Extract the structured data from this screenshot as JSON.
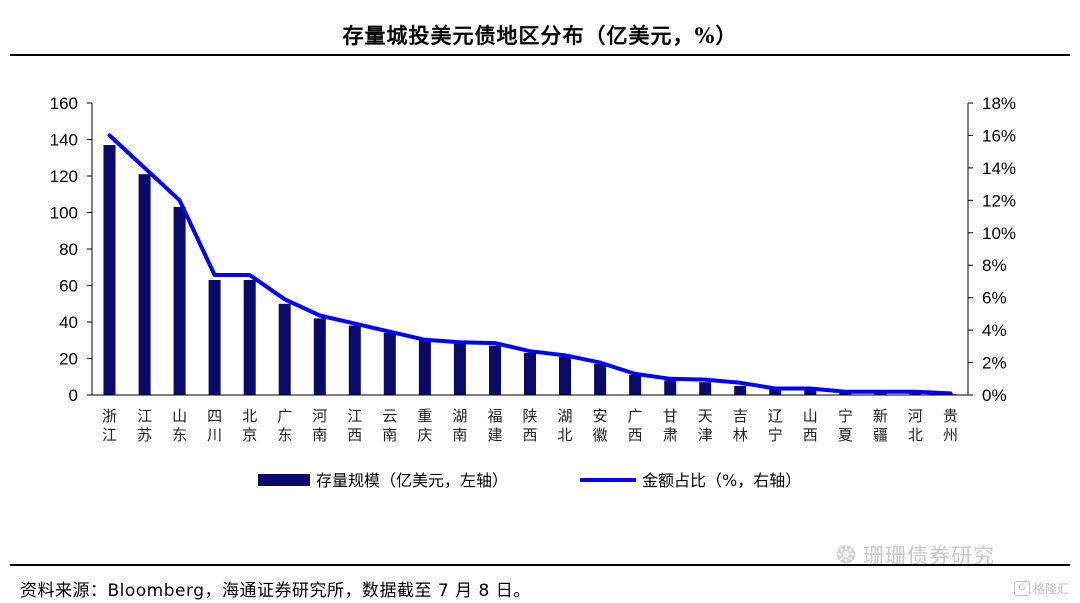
{
  "title": "存量城投美元债地区分布（亿美元，%）",
  "source": "资料来源：Bloomberg，海通证券研究所，数据截至 7 月 8 日。",
  "watermark": {
    "text": "珊珊债券研究",
    "icon": "wechat-icon"
  },
  "corner_badge": {
    "text": "格隆汇",
    "icon": "gelonghui-logo-icon"
  },
  "colors": {
    "bar": "#0a0a6b",
    "line": "#0000ff",
    "axis": "#000000"
  },
  "chart_data": {
    "type": "bar+line",
    "categories": [
      [
        "浙",
        "江"
      ],
      [
        "江",
        "苏"
      ],
      [
        "山",
        "东"
      ],
      [
        "四",
        "川"
      ],
      [
        "北",
        "京"
      ],
      [
        "广",
        "东"
      ],
      [
        "河",
        "南"
      ],
      [
        "江",
        "西"
      ],
      [
        "云",
        "南"
      ],
      [
        "重",
        "庆"
      ],
      [
        "湖",
        "南"
      ],
      [
        "福",
        "建"
      ],
      [
        "陕",
        "西"
      ],
      [
        "湖",
        "北"
      ],
      [
        "安",
        "徽"
      ],
      [
        "广",
        "西"
      ],
      [
        "甘",
        "肃"
      ],
      [
        "天",
        "津"
      ],
      [
        "吉",
        "林"
      ],
      [
        "辽",
        "宁"
      ],
      [
        "山",
        "西"
      ],
      [
        "宁",
        "夏"
      ],
      [
        "新",
        "疆"
      ],
      [
        "河",
        "北"
      ],
      [
        "贵",
        "州"
      ]
    ],
    "series": [
      {
        "name": "存量规模（亿美元，左轴）",
        "type": "bar",
        "axis": "left",
        "values": [
          137,
          121,
          103,
          63,
          63,
          50,
          42,
          38,
          34,
          30,
          28,
          27,
          23,
          21,
          17,
          11,
          8,
          7,
          5,
          3,
          3,
          1.5,
          1.5,
          1.5,
          0.5
        ]
      },
      {
        "name": "金额占比（%，右轴）",
        "type": "line",
        "axis": "right",
        "values": [
          16.0,
          14.0,
          12.0,
          7.4,
          7.4,
          5.9,
          4.9,
          4.4,
          3.9,
          3.4,
          3.25,
          3.2,
          2.7,
          2.45,
          2.0,
          1.3,
          1.0,
          0.95,
          0.75,
          0.4,
          0.4,
          0.2,
          0.2,
          0.2,
          0.1
        ]
      }
    ],
    "left_axis": {
      "min": 0,
      "max": 160,
      "ticks": [
        "0",
        "20",
        "40",
        "60",
        "80",
        "100",
        "120",
        "140",
        "160"
      ]
    },
    "right_axis": {
      "min": 0,
      "max": 18,
      "ticks": [
        "0%",
        "2%",
        "4%",
        "6%",
        "8%",
        "10%",
        "12%",
        "14%",
        "16%",
        "18%"
      ]
    },
    "grid": false,
    "legend_position": "bottom"
  }
}
